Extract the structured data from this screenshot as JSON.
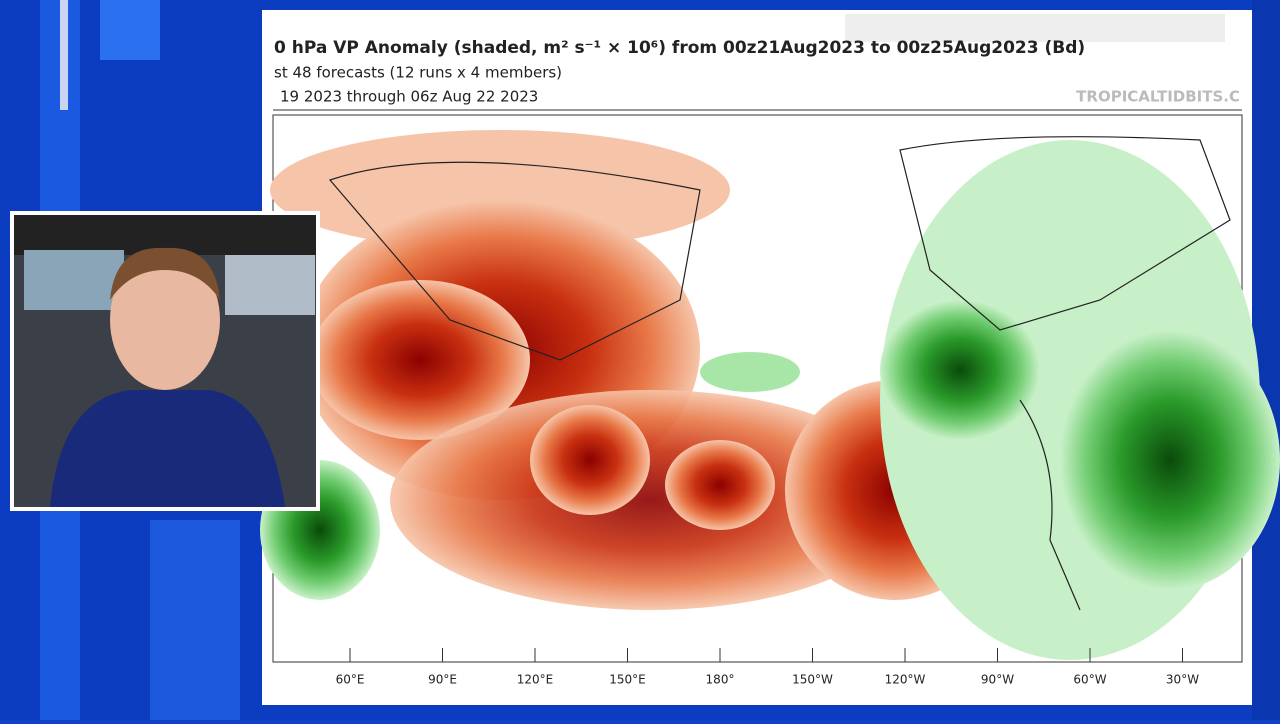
{
  "header": {
    "title": "0 hPa VP Anomaly (shaded, m² s⁻¹ × 10⁶) from 00z21Aug2023 to 00z25Aug2023 (Bd)",
    "subtitle": "st 48 forecasts (12 runs x 4 members)",
    "period": "19 2023 through 06z Aug 22 2023",
    "credit": "TROPICALTIDBITS.C"
  },
  "map": {
    "lon_labels": [
      "60°E",
      "90°E",
      "120°E",
      "150°E",
      "180°",
      "150°W",
      "120°W",
      "90°W",
      "60°W",
      "30°W"
    ]
  }
}
